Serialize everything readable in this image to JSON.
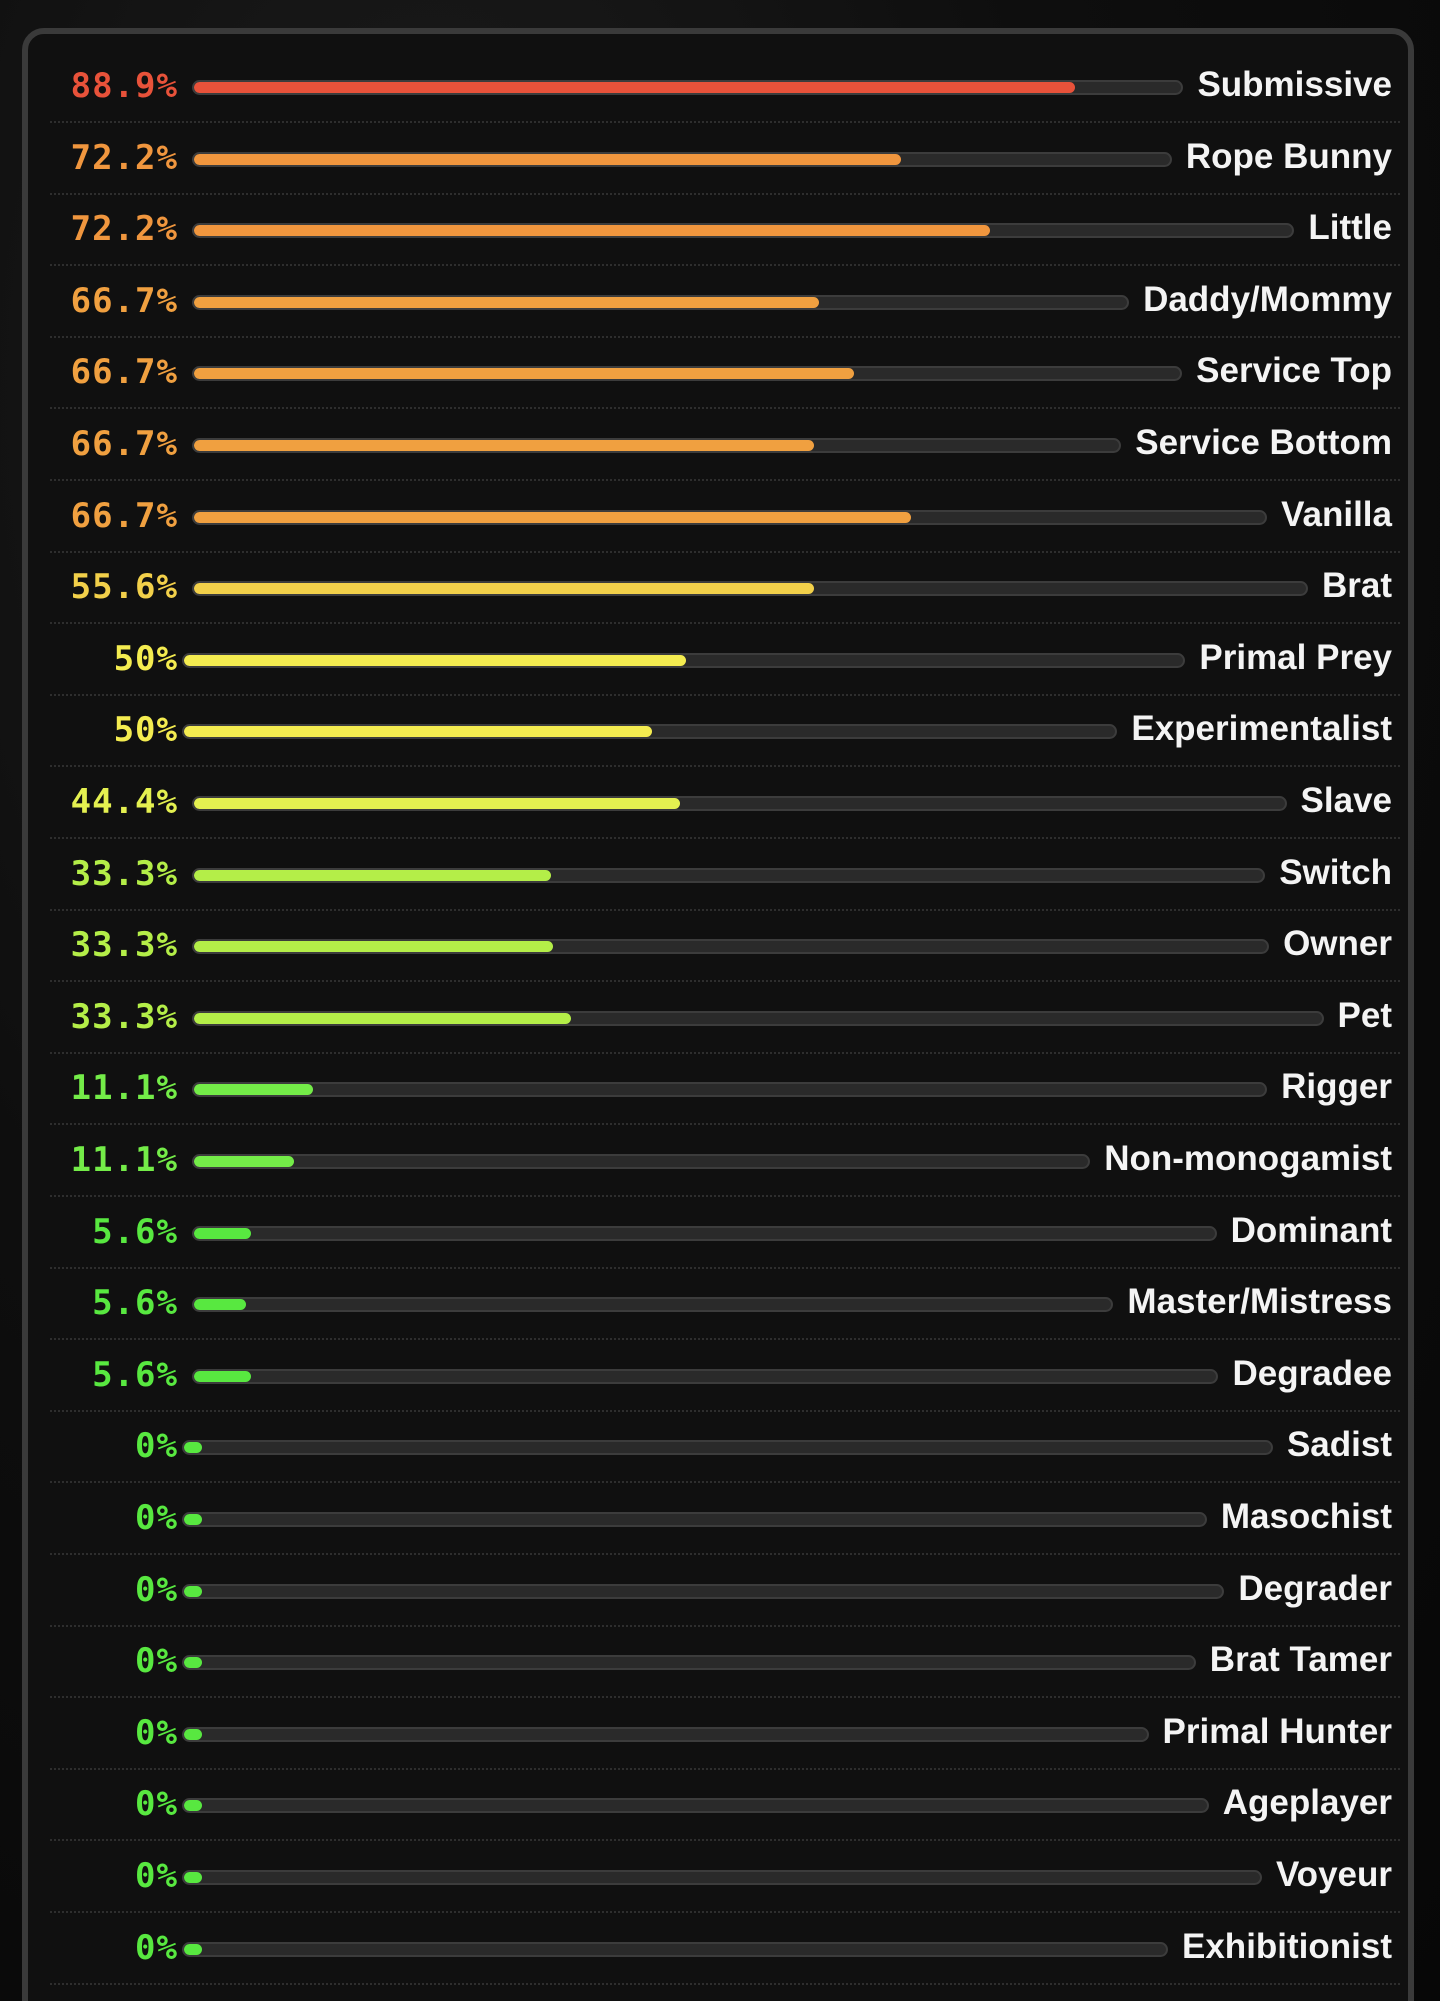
{
  "colors": {
    "panel_bg": "#101010",
    "border": "#3a3a3a",
    "track": "#2a2a2a",
    "label": "#f4f4f4",
    "scrollbar": "#c9c9c9"
  },
  "chart_data": {
    "type": "bar",
    "orientation": "horizontal",
    "xlim": [
      0,
      100
    ],
    "grid": false,
    "legend": "none",
    "categories": [
      "Submissive",
      "Rope Bunny",
      "Little",
      "Daddy/Mommy",
      "Service Top",
      "Service Bottom",
      "Vanilla",
      "Brat",
      "Primal Prey",
      "Experimentalist",
      "Slave",
      "Switch",
      "Owner",
      "Pet",
      "Rigger",
      "Non-monogamist",
      "Dominant",
      "Master/Mistress",
      "Degradee",
      "Sadist",
      "Masochist",
      "Degrader",
      "Brat Tamer",
      "Primal Hunter",
      "Ageplayer",
      "Voyeur",
      "Exhibitionist"
    ],
    "values": [
      88.9,
      72.2,
      72.2,
      66.7,
      66.7,
      66.7,
      66.7,
      55.6,
      50,
      50,
      44.4,
      33.3,
      33.3,
      33.3,
      11.1,
      11.1,
      5.6,
      5.6,
      5.6,
      0,
      0,
      0,
      0,
      0,
      0,
      0,
      0
    ],
    "value_labels": [
      "88.9%",
      "72.2%",
      "72.2%",
      "66.7%",
      "66.7%",
      "66.7%",
      "66.7%",
      "55.6%",
      "50%",
      "50%",
      "44.4%",
      "33.3%",
      "33.3%",
      "33.3%",
      "11.1%",
      "11.1%",
      "5.6%",
      "5.6%",
      "5.6%",
      "0%",
      "0%",
      "0%",
      "0%",
      "0%",
      "0%",
      "0%",
      "0%"
    ],
    "value_colors": [
      "#e8523a",
      "#f0963e",
      "#f0963e",
      "#f0a040",
      "#f0a040",
      "#f0a040",
      "#f0a040",
      "#f2d04a",
      "#f4ec50",
      "#f4ec50",
      "#e4f050",
      "#b4ee48",
      "#b4ee48",
      "#b4ee48",
      "#74ec48",
      "#74ec48",
      "#58e840",
      "#58e840",
      "#58e840",
      "#58e840",
      "#58e840",
      "#58e840",
      "#58e840",
      "#58e840",
      "#58e840",
      "#58e840",
      "#58e840"
    ]
  }
}
